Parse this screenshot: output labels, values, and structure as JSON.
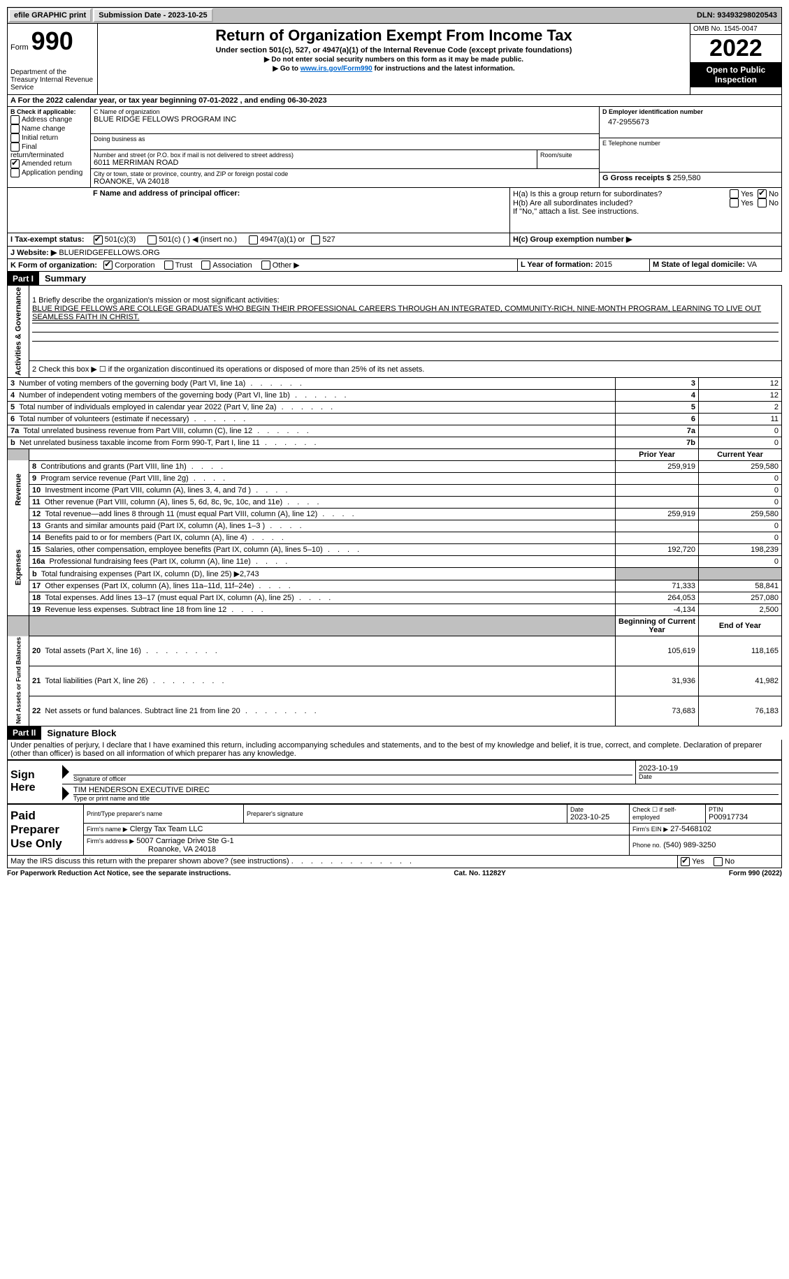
{
  "topbar": {
    "efile": "efile GRAPHIC print",
    "submission_label": "Submission Date - 2023-10-25",
    "dln_label": "DLN: 93493298020543"
  },
  "header": {
    "form_word": "Form",
    "form_num": "990",
    "dept": "Department of the Treasury Internal Revenue Service",
    "title": "Return of Organization Exempt From Income Tax",
    "subtitle": "Under section 501(c), 527, or 4947(a)(1) of the Internal Revenue Code (except private foundations)",
    "instr1": "▶ Do not enter social security numbers on this form as it may be made public.",
    "instr2_pre": "▶ Go to ",
    "instr2_link": "www.irs.gov/Form990",
    "instr2_post": " for instructions and the latest information.",
    "omb": "OMB No. 1545-0047",
    "year": "2022",
    "open": "Open to Public Inspection"
  },
  "lineA": "A For the 2022 calendar year, or tax year beginning 07-01-2022     , and ending 06-30-2023",
  "boxB": {
    "label": "B Check if applicable:",
    "items": [
      "Address change",
      "Name change",
      "Initial return",
      "Final return/terminated",
      "Amended return",
      "Application pending"
    ],
    "checked_idx": 4
  },
  "boxC": {
    "label": "C Name of organization",
    "name": "BLUE RIDGE FELLOWS PROGRAM INC",
    "dba_label": "Doing business as",
    "addr_label": "Number and street (or P.O. box if mail is not delivered to street address)",
    "room_label": "Room/suite",
    "addr": "6011 MERRIMAN ROAD",
    "city_label": "City or town, state or province, country, and ZIP or foreign postal code",
    "city": "ROANOKE, VA  24018"
  },
  "boxD": {
    "label": "D Employer identification number",
    "val": "47-2955673"
  },
  "boxE": {
    "label": "E Telephone number"
  },
  "boxG": {
    "label": "G Gross receipts $",
    "val": "259,580"
  },
  "boxF": {
    "label": "F  Name and address of principal officer:"
  },
  "boxH": {
    "a": "H(a)  Is this a group return for subordinates?",
    "b": "H(b)  Are all subordinates included?",
    "b_note": "If \"No,\" attach a list. See instructions.",
    "c": "H(c)  Group exemption number ▶",
    "yes": "Yes",
    "no": "No"
  },
  "boxI": {
    "label": "I    Tax-exempt status:",
    "opts": [
      "501(c)(3)",
      "501(c) (  ) ◀ (insert no.)",
      "4947(a)(1) or",
      "527"
    ]
  },
  "boxJ": {
    "label": "J   Website: ▶",
    "val": "BLUERIDGEFELLOWS.ORG"
  },
  "boxK": {
    "label": "K Form of organization:",
    "opts": [
      "Corporation",
      "Trust",
      "Association",
      "Other ▶"
    ]
  },
  "boxL": {
    "label": "L Year of formation:",
    "val": "2015"
  },
  "boxM": {
    "label": "M State of legal domicile:",
    "val": "VA"
  },
  "partI": {
    "num": "Part I",
    "title": "Summary"
  },
  "summary": {
    "l1_label": "1  Briefly describe the organization's mission or most significant activities:",
    "l1_text": "BLUE RIDGE FELLOWS ARE COLLEGE GRADUATES WHO BEGIN THEIR PROFESSIONAL CAREERS THROUGH AN INTEGRATED, COMMUNITY-RICH, NINE-MONTH PROGRAM, LEARNING TO LIVE OUT SEAMLESS FAITH IN CHRIST.",
    "l2": "2   Check this box ▶ ☐  if the organization discontinued its operations or disposed of more than 25% of its net assets.",
    "rows": [
      {
        "n": "3",
        "t": "Number of voting members of the governing body (Part VI, line 1a)",
        "b": "3",
        "v": "12"
      },
      {
        "n": "4",
        "t": "Number of independent voting members of the governing body (Part VI, line 1b)",
        "b": "4",
        "v": "12"
      },
      {
        "n": "5",
        "t": "Total number of individuals employed in calendar year 2022 (Part V, line 2a)",
        "b": "5",
        "v": "2"
      },
      {
        "n": "6",
        "t": "Total number of volunteers (estimate if necessary)",
        "b": "6",
        "v": "11"
      },
      {
        "n": "7a",
        "t": "Total unrelated business revenue from Part VIII, column (C), line 12",
        "b": "7a",
        "v": "0"
      },
      {
        "n": "b",
        "t": "Net unrelated business taxable income from Form 990-T, Part I, line 11",
        "b": "7b",
        "v": "0"
      }
    ],
    "prior": "Prior Year",
    "current": "Current Year",
    "rev": [
      {
        "n": "8",
        "t": "Contributions and grants (Part VIII, line 1h)",
        "p": "259,919",
        "c": "259,580"
      },
      {
        "n": "9",
        "t": "Program service revenue (Part VIII, line 2g)",
        "p": "",
        "c": "0"
      },
      {
        "n": "10",
        "t": "Investment income (Part VIII, column (A), lines 3, 4, and 7d )",
        "p": "",
        "c": "0"
      },
      {
        "n": "11",
        "t": "Other revenue (Part VIII, column (A), lines 5, 6d, 8c, 9c, 10c, and 11e)",
        "p": "",
        "c": "0"
      },
      {
        "n": "12",
        "t": "Total revenue—add lines 8 through 11 (must equal Part VIII, column (A), line 12)",
        "p": "259,919",
        "c": "259,580"
      }
    ],
    "exp": [
      {
        "n": "13",
        "t": "Grants and similar amounts paid (Part IX, column (A), lines 1–3 )",
        "p": "",
        "c": "0"
      },
      {
        "n": "14",
        "t": "Benefits paid to or for members (Part IX, column (A), line 4)",
        "p": "",
        "c": "0"
      },
      {
        "n": "15",
        "t": "Salaries, other compensation, employee benefits (Part IX, column (A), lines 5–10)",
        "p": "192,720",
        "c": "198,239"
      },
      {
        "n": "16a",
        "t": "Professional fundraising fees (Part IX, column (A), line 11e)",
        "p": "",
        "c": "0"
      },
      {
        "n": "b",
        "t": "Total fundraising expenses (Part IX, column (D), line 25) ▶2,743",
        "shade": true
      },
      {
        "n": "17",
        "t": "Other expenses (Part IX, column (A), lines 11a–11d, 11f–24e)",
        "p": "71,333",
        "c": "58,841"
      },
      {
        "n": "18",
        "t": "Total expenses. Add lines 13–17 (must equal Part IX, column (A), line 25)",
        "p": "264,053",
        "c": "257,080"
      },
      {
        "n": "19",
        "t": "Revenue less expenses. Subtract line 18 from line 12",
        "p": "-4,134",
        "c": "2,500"
      }
    ],
    "beg": "Beginning of Current Year",
    "end": "End of Year",
    "net": [
      {
        "n": "20",
        "t": "Total assets (Part X, line 16)",
        "p": "105,619",
        "c": "118,165"
      },
      {
        "n": "21",
        "t": "Total liabilities (Part X, line 26)",
        "p": "31,936",
        "c": "41,982"
      },
      {
        "n": "22",
        "t": "Net assets or fund balances. Subtract line 21 from line 20",
        "p": "73,683",
        "c": "76,183"
      }
    ],
    "vlabels": {
      "ag": "Activities & Governance",
      "rev": "Revenue",
      "exp": "Expenses",
      "net": "Net Assets or Fund Balances"
    }
  },
  "partII": {
    "num": "Part II",
    "title": "Signature Block"
  },
  "penalty": "Under penalties of perjury, I declare that I have examined this return, including accompanying schedules and statements, and to the best of my knowledge and belief, it is true, correct, and complete. Declaration of preparer (other than officer) is based on all information of which preparer has any knowledge.",
  "sign": {
    "here": "Sign Here",
    "sig_officer": "Signature of officer",
    "date": "Date",
    "date_val": "2023-10-19",
    "name": "TIM HENDERSON  EXECUTIVE DIREC",
    "name_label": "Type or print name and title"
  },
  "paid": {
    "label": "Paid Preparer Use Only",
    "h1": "Print/Type preparer's name",
    "h2": "Preparer's signature",
    "h3": "Date",
    "h3v": "2023-10-25",
    "h4": "Check ☐  if self-employed",
    "h5": "PTIN",
    "h5v": "P00917734",
    "firm_label": "Firm's name     ▶",
    "firm": "Clergy Tax Team LLC",
    "ein_label": "Firm's EIN ▶",
    "ein": "27-5468102",
    "addr_label": "Firm's address ▶",
    "addr1": "5007 Carriage Drive Ste G-1",
    "addr2": "Roanoke, VA  24018",
    "phone_label": "Phone no.",
    "phone": "(540) 989-3250"
  },
  "discuss": "May the IRS discuss this return with the preparer shown above? (see instructions)",
  "footer": {
    "l": "For Paperwork Reduction Act Notice, see the separate instructions.",
    "c": "Cat. No. 11282Y",
    "r": "Form 990 (2022)"
  }
}
